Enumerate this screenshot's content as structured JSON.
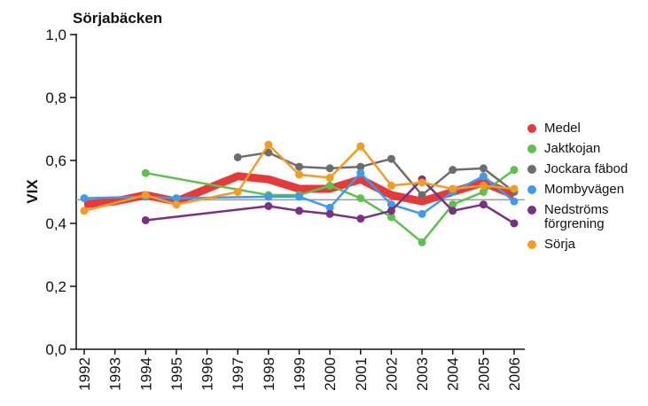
{
  "chart_data": {
    "type": "line",
    "title": "Sörjabäcken",
    "y_label": "VIX",
    "categories": [
      "1992",
      "1993",
      "1994",
      "1995",
      "1996",
      "1997",
      "1998",
      "1999",
      "2000",
      "2001",
      "2002",
      "2003",
      "2004",
      "2005",
      "2006"
    ],
    "ylim": [
      0,
      1.0
    ],
    "yticks": [
      {
        "value": 0,
        "label": "0,0"
      },
      {
        "value": 0.2,
        "label": "0,2"
      },
      {
        "value": 0.4,
        "label": "0,4"
      },
      {
        "value": 0.6,
        "label": "0,6"
      },
      {
        "value": 0.8,
        "label": "0,8"
      },
      {
        "value": 1.0,
        "label": "1,0"
      }
    ],
    "reference_line": {
      "value": 0.475,
      "color": "#9a9a9a"
    },
    "series": [
      {
        "name": "Medel",
        "color": "#e8393a",
        "width": 9,
        "markers": false,
        "values": [
          0.46,
          0.47,
          0.49,
          0.47,
          0.51,
          0.55,
          0.54,
          0.51,
          0.51,
          0.54,
          0.49,
          0.47,
          0.5,
          0.53,
          0.49
        ]
      },
      {
        "name": "Jaktkojan",
        "color": "#5cc24c",
        "width": 2.5,
        "markers": true,
        "values": [
          null,
          null,
          0.56,
          null,
          null,
          null,
          0.49,
          0.49,
          0.52,
          0.48,
          0.42,
          0.34,
          0.46,
          0.5,
          0.57
        ]
      },
      {
        "name": "Jockara fäbod",
        "color": "#6d6d6d",
        "width": 2.5,
        "markers": true,
        "values": [
          null,
          null,
          null,
          null,
          null,
          0.61,
          0.625,
          0.58,
          0.575,
          0.58,
          0.605,
          0.49,
          0.57,
          0.575,
          0.5
        ]
      },
      {
        "name": "Mombyvägen",
        "color": "#3a9bef",
        "width": 2.5,
        "markers": true,
        "values": [
          0.48,
          null,
          0.485,
          0.48,
          null,
          null,
          0.485,
          0.485,
          0.45,
          0.56,
          0.46,
          0.43,
          0.5,
          0.55,
          0.47
        ]
      },
      {
        "name": "Nedströms förgrening",
        "color": "#7b2f86",
        "width": 2.5,
        "markers": true,
        "values": [
          null,
          null,
          0.41,
          null,
          null,
          null,
          0.455,
          0.44,
          0.43,
          0.415,
          0.44,
          0.54,
          0.44,
          0.46,
          0.4
        ]
      },
      {
        "name": "Sörja",
        "color": "#f39c1f",
        "width": 2.5,
        "markers": true,
        "values": [
          0.44,
          null,
          0.49,
          0.46,
          null,
          0.5,
          0.65,
          0.555,
          0.545,
          0.645,
          0.52,
          0.53,
          0.51,
          0.52,
          0.51
        ]
      }
    ]
  }
}
